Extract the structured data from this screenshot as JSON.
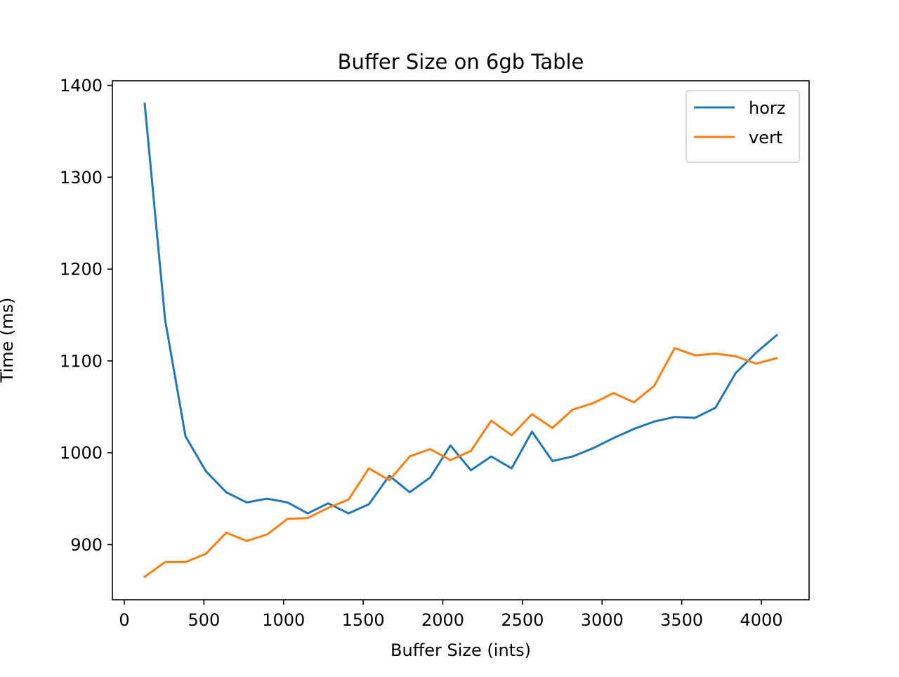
{
  "chart_data": {
    "type": "line",
    "title": "Buffer Size on 6gb Table",
    "xlabel": "Buffer Size (ints)",
    "ylabel": "Time (ms)",
    "xlim": [
      -75,
      4300
    ],
    "ylim": [
      840,
      1405
    ],
    "xticks": [
      0,
      500,
      1000,
      1500,
      2000,
      2500,
      3000,
      3500,
      4000
    ],
    "yticks": [
      900,
      1000,
      1100,
      1200,
      1300,
      1400
    ],
    "grid": false,
    "legend_position": "top-right",
    "x": [
      128,
      256,
      384,
      512,
      640,
      768,
      896,
      1024,
      1152,
      1280,
      1408,
      1536,
      1664,
      1792,
      1920,
      2048,
      2176,
      2304,
      2432,
      2560,
      2688,
      2816,
      2944,
      3072,
      3200,
      3328,
      3456,
      3584,
      3712,
      3840,
      3968,
      4096
    ],
    "series": [
      {
        "name": "horz",
        "color": "#1f77b4",
        "values": [
          1380,
          1145,
          1018,
          980,
          957,
          946,
          950,
          946,
          934,
          945,
          934,
          944,
          975,
          957,
          973,
          1008,
          981,
          996,
          983,
          1023,
          991,
          996,
          1005,
          1016,
          1026,
          1034,
          1039,
          1038,
          1049,
          1087,
          1109,
          1128
        ]
      },
      {
        "name": "vert",
        "color": "#ff7f0e",
        "values": [
          865,
          881,
          881,
          890,
          913,
          904,
          911,
          928,
          929,
          940,
          949,
          983,
          970,
          996,
          1004,
          992,
          1002,
          1035,
          1019,
          1042,
          1027,
          1047,
          1054,
          1065,
          1055,
          1073,
          1114,
          1106,
          1108,
          1105,
          1097,
          1103
        ]
      }
    ]
  }
}
